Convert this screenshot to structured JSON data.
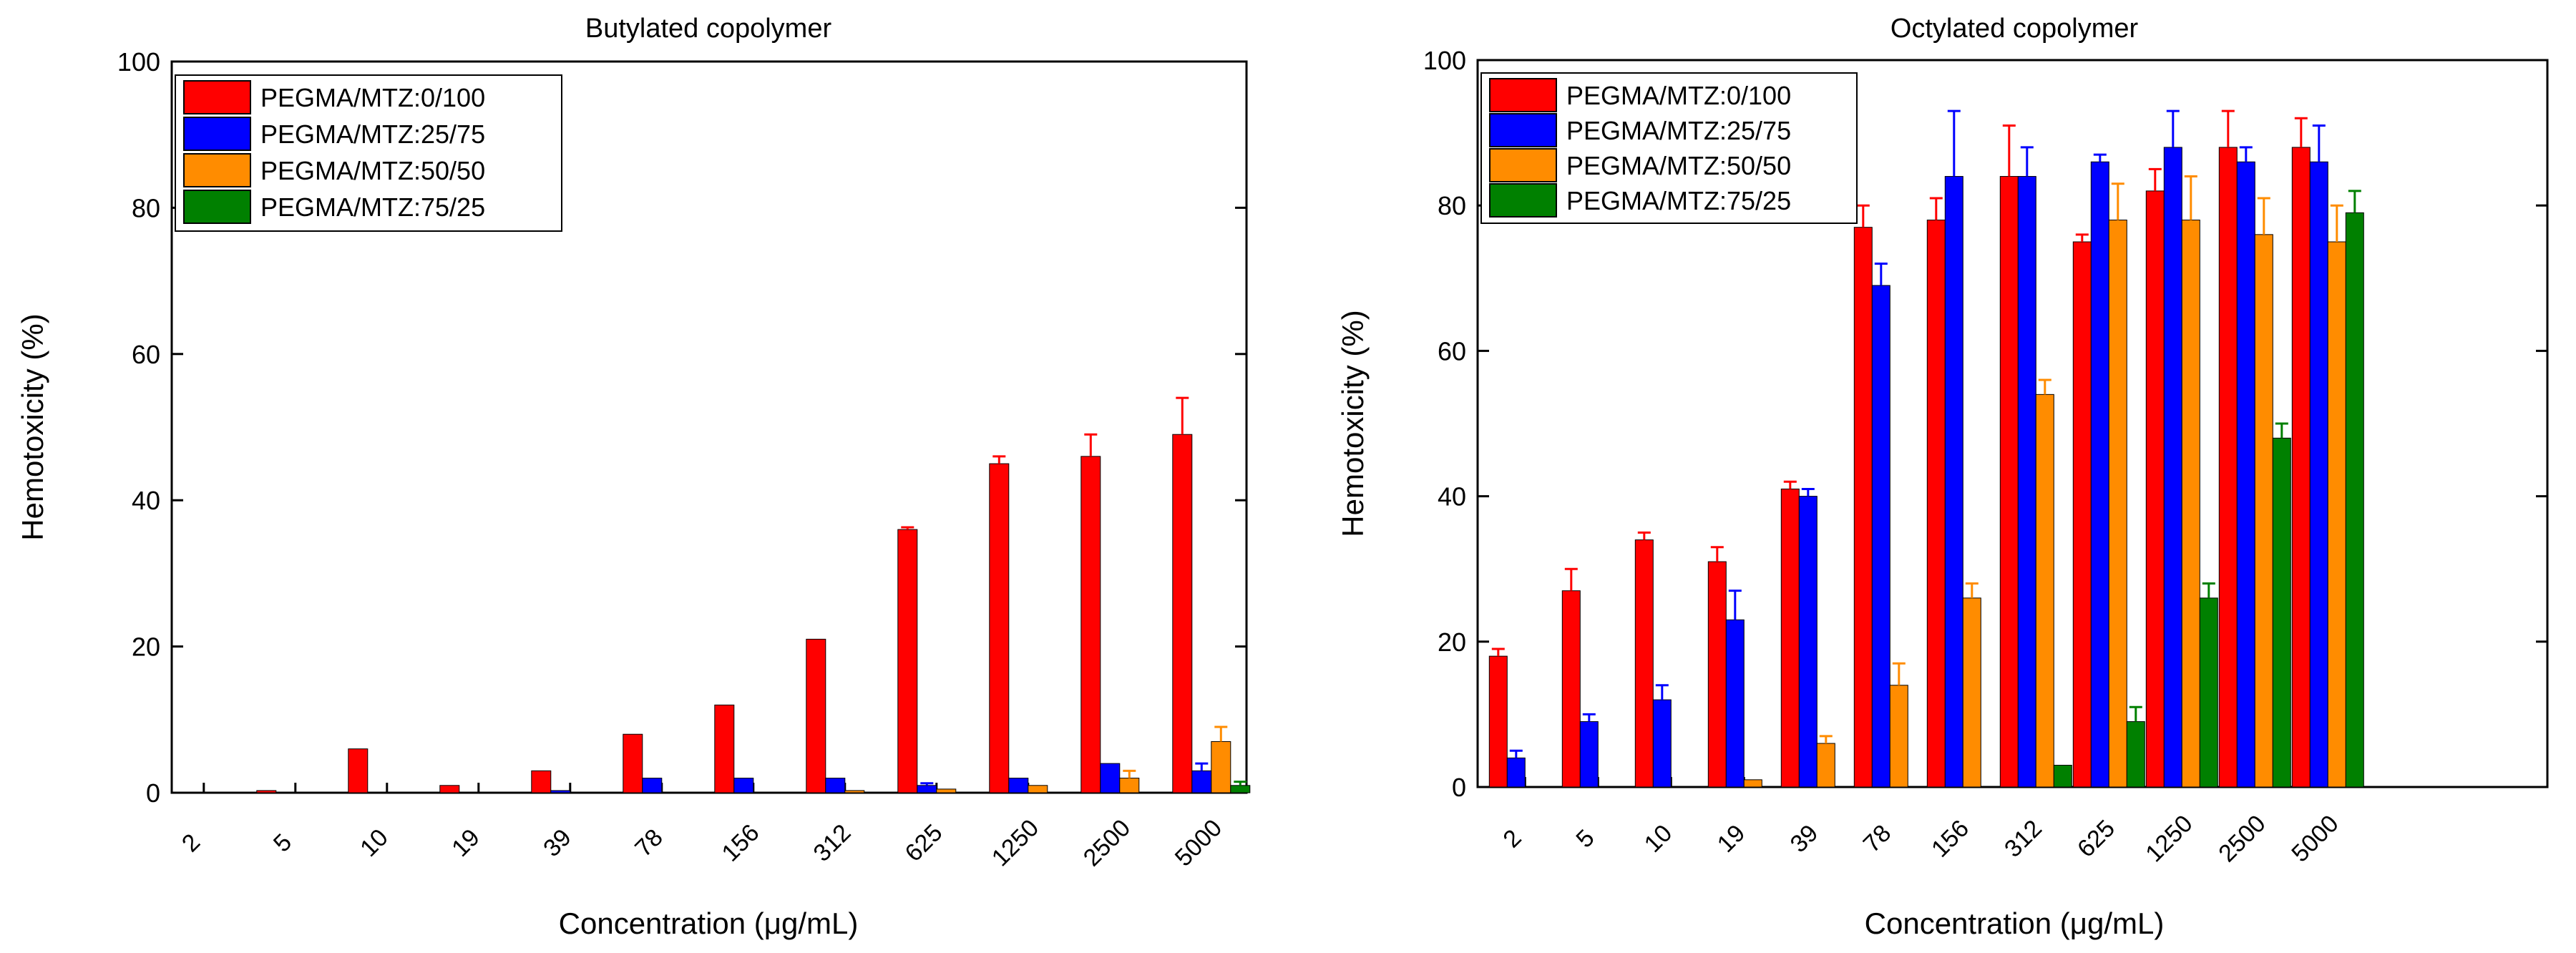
{
  "chart_data": [
    {
      "type": "bar",
      "title": "Butylated copolymer",
      "xlabel": "Concentration (μg/mL)",
      "ylabel": "Hemotoxicity (%)",
      "ylim": [
        0,
        100
      ],
      "yticks": [
        0,
        20,
        40,
        60,
        80,
        100
      ],
      "legend_position": "top-left",
      "categories": [
        "2",
        "5",
        "10",
        "19",
        "39",
        "78",
        "156",
        "312",
        "625",
        "1250",
        "2500",
        "5000"
      ],
      "series": [
        {
          "name": "PEGMA/MTZ:0/100",
          "color": "#ff0000",
          "values": [
            0,
            0.3,
            6,
            1,
            3,
            8,
            12,
            21,
            36,
            45,
            46,
            49
          ],
          "errors": [
            0,
            0,
            0,
            0,
            0,
            0,
            0,
            0,
            0.3,
            1,
            3,
            5
          ]
        },
        {
          "name": "PEGMA/MTZ:25/75",
          "color": "#0000ff",
          "values": [
            0,
            0,
            0,
            0,
            0.3,
            2,
            2,
            2,
            1,
            2,
            4,
            3
          ],
          "errors": [
            0,
            0,
            0,
            0,
            0,
            0,
            0,
            0,
            0.3,
            0,
            0,
            1
          ]
        },
        {
          "name": "PEGMA/MTZ:50/50",
          "color": "#ff8c00",
          "values": [
            0,
            0,
            0,
            0,
            0,
            0,
            0,
            0.3,
            0.5,
            1,
            2,
            7
          ],
          "errors": [
            0,
            0,
            0,
            0,
            0,
            0,
            0,
            0,
            0,
            0,
            1,
            2
          ]
        },
        {
          "name": "PEGMA/MTZ:75/25",
          "color": "#008000",
          "values": [
            0,
            0,
            0,
            0,
            0,
            0,
            0,
            0,
            0,
            0,
            0,
            1
          ],
          "errors": [
            0,
            0,
            0,
            0,
            0,
            0,
            0,
            0,
            0,
            0,
            0,
            0.5
          ]
        }
      ]
    },
    {
      "type": "bar",
      "title": "Octylated copolymer",
      "xlabel": "Concentration (μg/mL)",
      "ylabel": "Hemotoxicity (%)",
      "ylim": [
        0,
        100
      ],
      "yticks": [
        0,
        20,
        40,
        60,
        80,
        100
      ],
      "legend_position": "top-left",
      "categories": [
        "2",
        "5",
        "10",
        "19",
        "39",
        "78",
        "156",
        "312",
        "625",
        "1250",
        "2500",
        "5000"
      ],
      "series": [
        {
          "name": "PEGMA/MTZ:0/100",
          "color": "#ff0000",
          "values": [
            18,
            27,
            34,
            31,
            41,
            77,
            78,
            84,
            75,
            82,
            88,
            88
          ],
          "errors": [
            1,
            3,
            1,
            2,
            1,
            3,
            3,
            7,
            1,
            3,
            5,
            4
          ]
        },
        {
          "name": "PEGMA/MTZ:25/75",
          "color": "#0000ff",
          "values": [
            4,
            9,
            12,
            23,
            40,
            69,
            84,
            84,
            86,
            88,
            86,
            86
          ],
          "errors": [
            1,
            1,
            2,
            4,
            1,
            3,
            9,
            4,
            1,
            5,
            2,
            5
          ]
        },
        {
          "name": "PEGMA/MTZ:50/50",
          "color": "#ff8c00",
          "values": [
            0,
            0,
            0,
            1,
            6,
            14,
            26,
            54,
            78,
            78,
            76,
            75
          ],
          "errors": [
            0,
            0,
            0,
            0,
            1,
            3,
            2,
            2,
            5,
            6,
            5,
            5
          ]
        },
        {
          "name": "PEGMA/MTZ:75/25",
          "color": "#008000",
          "values": [
            0,
            0,
            0,
            0,
            0,
            0,
            0,
            3,
            9,
            26,
            48,
            79
          ],
          "errors": [
            0,
            0,
            0,
            0,
            0,
            0,
            0,
            0,
            2,
            2,
            2,
            3
          ]
        }
      ]
    }
  ]
}
